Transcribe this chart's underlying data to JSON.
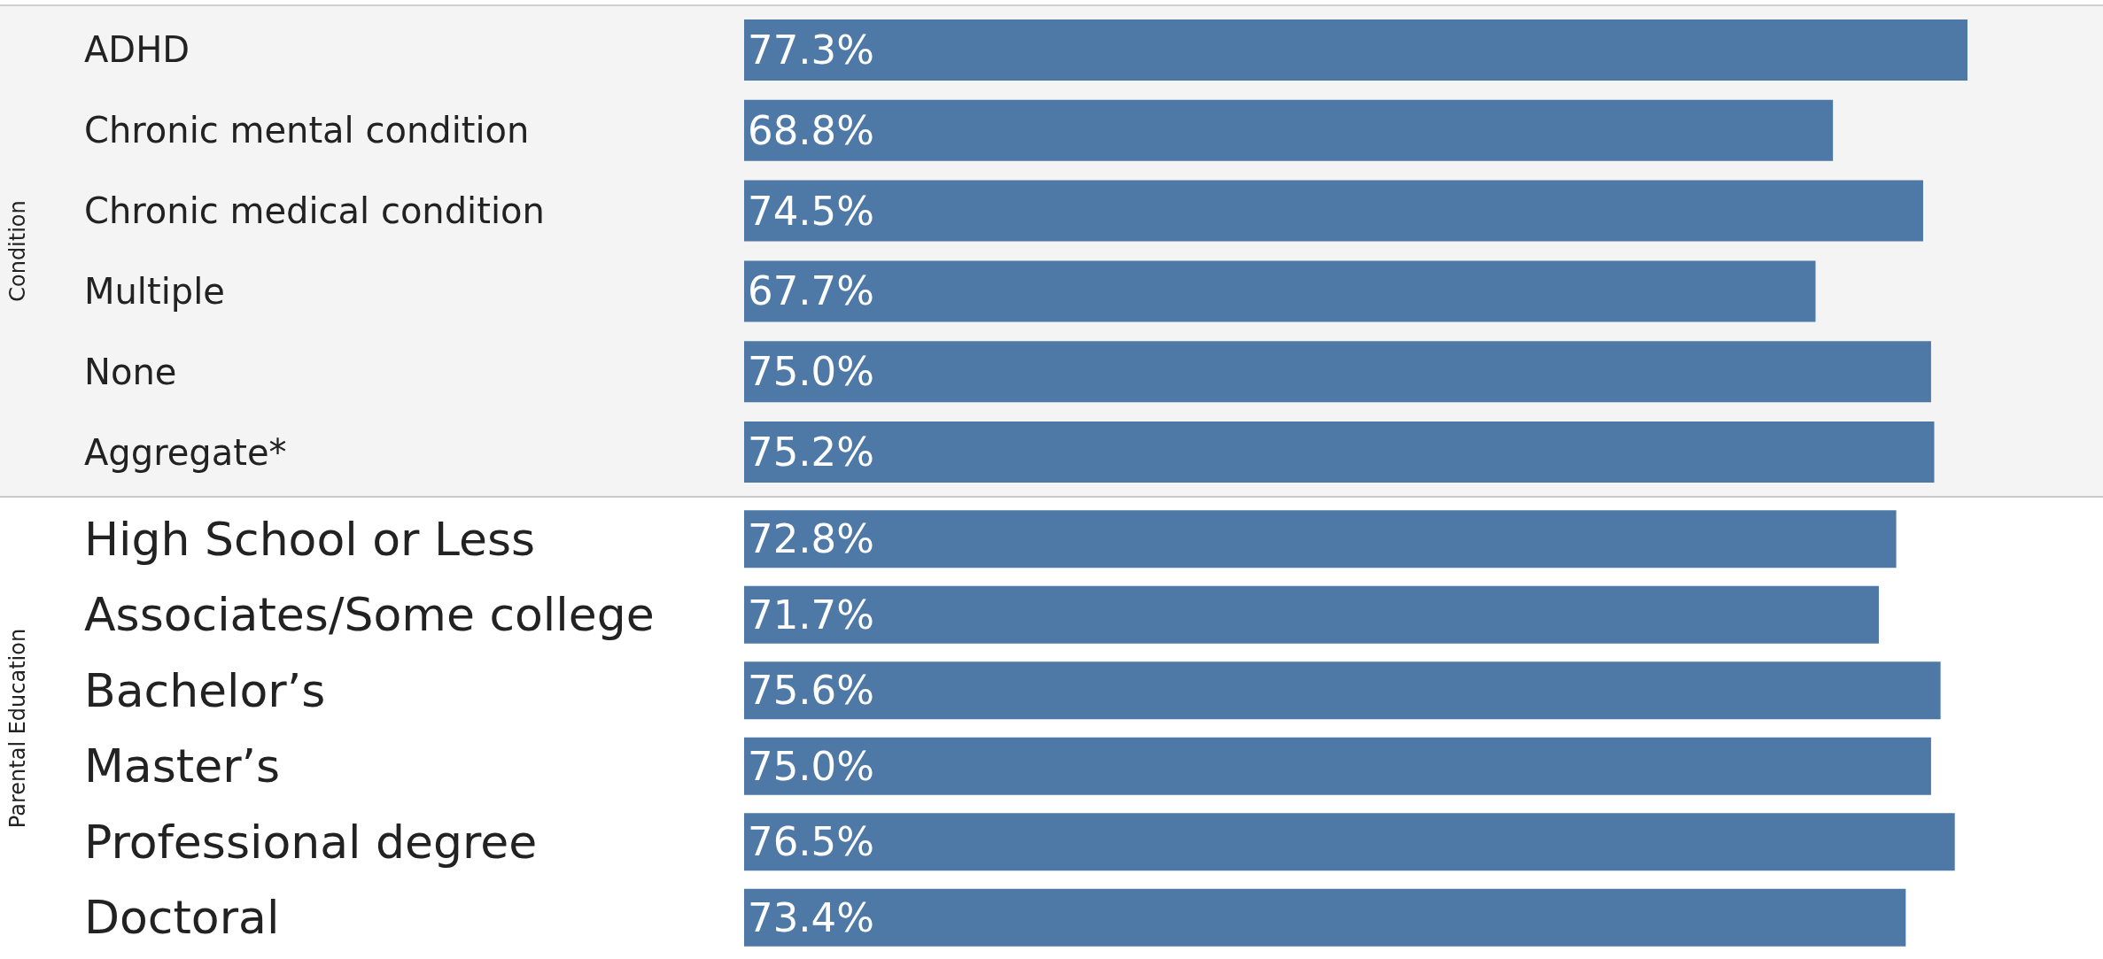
{
  "chart_data": [
    {
      "type": "bar",
      "orientation": "horizontal",
      "ylabel": "Condition",
      "categories": [
        "ADHD",
        "Chronic mental condition",
        "Chronic medical condition",
        "Multiple",
        "None",
        "Aggregate*"
      ],
      "values": [
        77.3,
        68.8,
        74.5,
        67.7,
        75.0,
        75.2
      ],
      "value_labels": [
        "77.3%",
        "68.8%",
        "74.5%",
        "67.7%",
        "75.0%",
        "75.2%"
      ],
      "color": "#4e79a7",
      "tick_labels": "y"
    },
    {
      "type": "bar",
      "orientation": "horizontal",
      "ylabel": "Parental Education",
      "categories": [
        "High School or Less",
        "Associates/Some college",
        "Bachelor’s",
        "Master’s",
        "Professional degree",
        "Doctoral"
      ],
      "values": [
        72.8,
        71.7,
        75.6,
        75.0,
        76.5,
        73.4
      ],
      "value_labels": [
        "72.8%",
        "71.7%",
        "75.6%",
        "75.0%",
        "76.5%",
        "73.4%"
      ],
      "color": "#4e79a7",
      "tick_labels": "y"
    }
  ]
}
